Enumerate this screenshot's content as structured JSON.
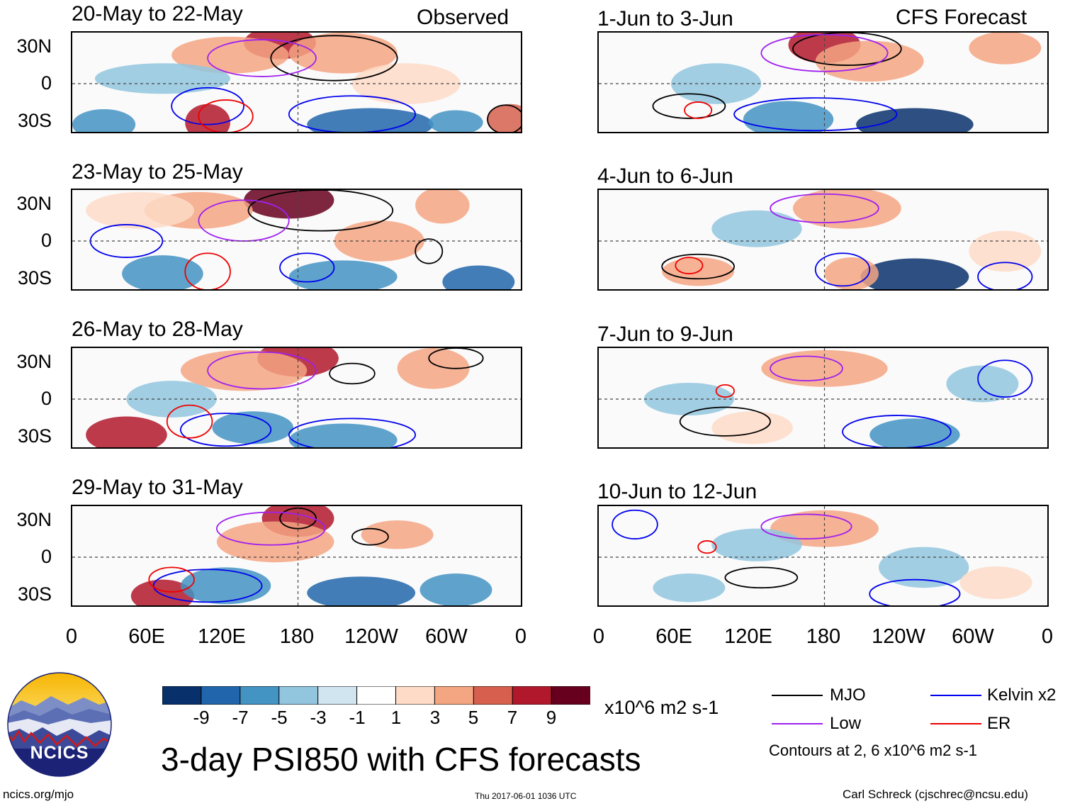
{
  "chart_data": {
    "type": "heatmap",
    "title": "3-day PSI850 with CFS forecasts",
    "units": "x10^6 m2 s-1",
    "x_ticks": [
      "0",
      "60E",
      "120E",
      "180",
      "120W",
      "60W",
      "0"
    ],
    "y_ticks": [
      "30N",
      "0",
      "30S"
    ],
    "lat_range": [
      -40,
      40
    ],
    "lon_range": [
      0,
      360
    ],
    "observed_label": "Observed",
    "forecast_label": "CFS Forecast",
    "observed_periods": [
      "20-May to 22-May",
      "23-May to 25-May",
      "26-May to 28-May",
      "29-May to 31-May"
    ],
    "forecast_periods": [
      "1-Jun to 3-Jun",
      "4-Jun to 6-Jun",
      "7-Jun to 9-Jun",
      "10-Jun to 12-Jun"
    ],
    "colorbar": {
      "levels": [
        "-9",
        "-7",
        "-5",
        "-3",
        "-1",
        "1",
        "3",
        "5",
        "7",
        "9"
      ],
      "colors": [
        "#08306b",
        "#2166ac",
        "#4393c3",
        "#92c5de",
        "#d1e5f0",
        "#ffffff",
        "#fddbc7",
        "#f4a582",
        "#d6604d",
        "#b2182b",
        "#67001f"
      ]
    },
    "legend": {
      "items": [
        {
          "name": "MJO",
          "color": "#000000"
        },
        {
          "name": "Kelvin x2",
          "color": "#0000ee"
        },
        {
          "name": "Low",
          "color": "#a020f0"
        },
        {
          "name": "ER",
          "color": "#ee0000"
        }
      ],
      "note": "Contours at 2, 6 x10^6 m2 s-1"
    }
  },
  "logo": {
    "text": "NCICS"
  },
  "footer": {
    "url": "ncics.org/mjo",
    "timestamp": "Thu 2017-06-01 1036 UTC",
    "credit": "Carl Schreck (cjschrec@ncsu.edu)"
  }
}
